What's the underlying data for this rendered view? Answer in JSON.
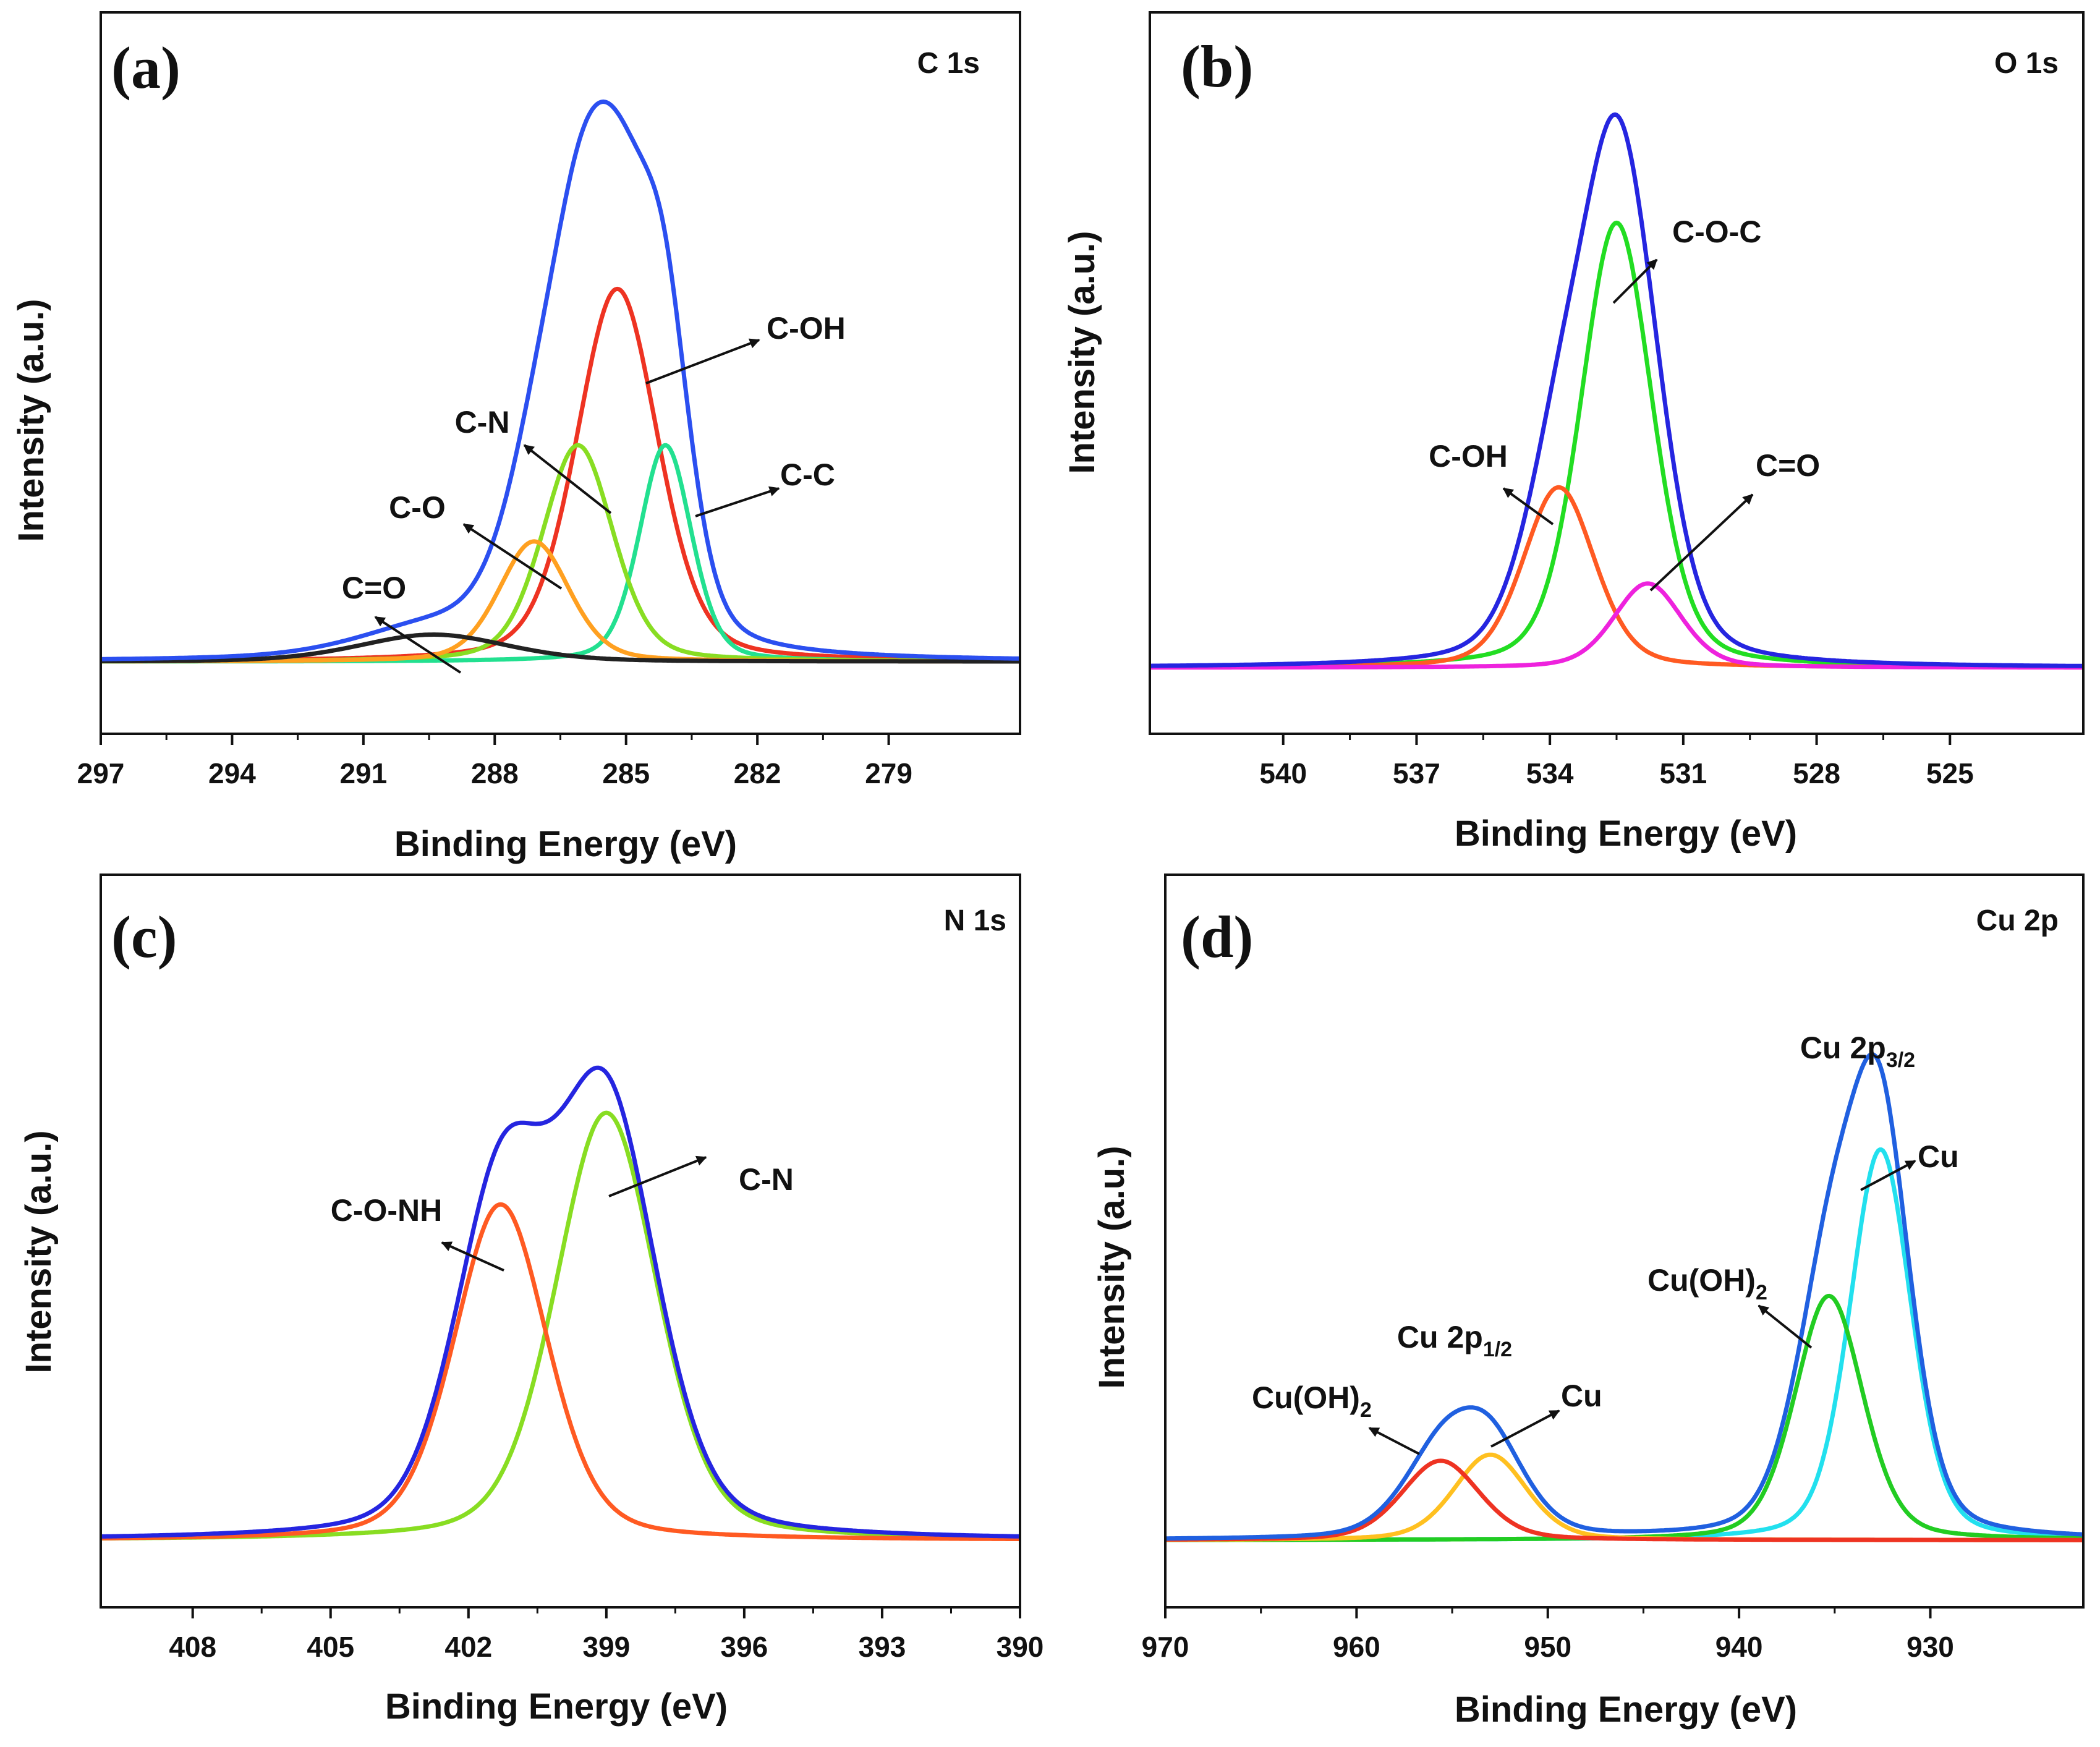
{
  "figure": {
    "panels": [
      {
        "letter": "(a)",
        "core": "C 1s",
        "xlabel": "Binding Energy (eV)",
        "ylabel": "Intensity (a.u.)"
      },
      {
        "letter": "(b)",
        "core": "O 1s",
        "xlabel": "Binding Energy (eV)",
        "ylabel": "Intensity (a.u.)"
      },
      {
        "letter": "(c)",
        "core": "N 1s",
        "xlabel": "Binding Energy (eV)",
        "ylabel": "Intensity (a.u.)"
      },
      {
        "letter": "(d)",
        "core": "Cu 2p",
        "xlabel": "Binding Energy (eV)",
        "ylabel": "Intensity (a.u.)"
      }
    ]
  },
  "chart_data": [
    {
      "type": "line",
      "title": "C 1s",
      "panel_label": "(a)",
      "xlabel": "Binding Energy (eV)",
      "ylabel": "Intensity (a.u.)",
      "xlim": [
        297,
        276
      ],
      "ylim": [
        -0.1,
        1.1
      ],
      "xticks": [
        "297",
        "294",
        "291",
        "288",
        "285",
        "282",
        "279"
      ],
      "yticks_shown": false,
      "baseline": 0.02,
      "series": [
        {
          "name": "Envelope",
          "color": "#2b4ff0",
          "envelope": true
        },
        {
          "name": "C-OH",
          "center": 285.2,
          "height": 0.62,
          "fwhm": 2.2,
          "color": "#ee3322"
        },
        {
          "name": "C-C",
          "center": 284.1,
          "height": 0.36,
          "fwhm": 1.4,
          "color": "#22e090"
        },
        {
          "name": "C-N",
          "center": 286.1,
          "height": 0.36,
          "fwhm": 1.9,
          "color": "#88dd22"
        },
        {
          "name": "C-O",
          "center": 287.1,
          "height": 0.2,
          "fwhm": 1.9,
          "color": "#ffa020"
        },
        {
          "name": "C=O",
          "center": 289.4,
          "height": 0.045,
          "fwhm": 4.0,
          "color": "#222222"
        }
      ],
      "annotations": [
        "C-OH",
        "C-C",
        "C-N",
        "C-O",
        "C=O"
      ]
    },
    {
      "type": "line",
      "title": "O 1s",
      "panel_label": "(b)",
      "xlabel": "Binding Energy (eV)",
      "ylabel": "Intensity (a.u.)",
      "xlim": [
        543,
        522
      ],
      "ylim": [
        -0.1,
        1.1
      ],
      "xticks": [
        "540",
        "537",
        "534",
        "531",
        "528",
        "525"
      ],
      "yticks_shown": false,
      "baseline": 0.01,
      "series": [
        {
          "name": "Envelope",
          "color": "#2525e0",
          "envelope": true
        },
        {
          "name": "C-O-C",
          "center": 532.5,
          "height": 0.74,
          "fwhm": 1.9,
          "color": "#22dd22"
        },
        {
          "name": "C-OH",
          "center": 533.8,
          "height": 0.3,
          "fwhm": 1.9,
          "color": "#ff5a22"
        },
        {
          "name": "C=O",
          "center": 531.8,
          "height": 0.14,
          "fwhm": 1.8,
          "color": "#ee22dd"
        }
      ],
      "annotations": [
        "C-O-C",
        "C-OH",
        "C=O"
      ]
    },
    {
      "type": "line",
      "title": "N 1s",
      "panel_label": "(c)",
      "xlabel": "Binding Energy (eV)",
      "ylabel": "Intensity (a.u.)",
      "xlim": [
        410,
        390
      ],
      "ylim": [
        -0.1,
        1.1
      ],
      "xticks": [
        "408",
        "405",
        "402",
        "399",
        "396",
        "393",
        "390"
      ],
      "yticks_shown": false,
      "baseline": 0.01,
      "series": [
        {
          "name": "Envelope",
          "color": "#2525e0",
          "envelope": true
        },
        {
          "name": "C-N",
          "center": 399.0,
          "height": 0.7,
          "fwhm": 2.6,
          "color": "#88dd22"
        },
        {
          "name": "C-O-NH",
          "center": 401.3,
          "height": 0.55,
          "fwhm": 2.4,
          "color": "#ff5a22"
        }
      ],
      "annotations": [
        "C-N",
        "C-O-NH"
      ]
    },
    {
      "type": "line",
      "title": "Cu 2p",
      "panel_label": "(d)",
      "xlabel": "Binding Energy (eV)",
      "ylabel": "Intensity (a.u.)",
      "xlim": [
        970,
        922
      ],
      "ylim": [
        -0.1,
        1.1
      ],
      "xticks": [
        "970",
        "960",
        "950",
        "940",
        "930"
      ],
      "yticks_shown": false,
      "baseline": 0.01,
      "series": [
        {
          "name": "Envelope",
          "color": "#2060e0",
          "envelope": true
        },
        {
          "name": "Cu 2p3/2 Cu",
          "center": 932.6,
          "height": 0.64,
          "fwhm": 3.8,
          "color": "#22e0ee"
        },
        {
          "name": "Cu 2p3/2 Cu(OH)2",
          "center": 935.3,
          "height": 0.4,
          "fwhm": 4.2,
          "color": "#22cc22"
        },
        {
          "name": "Cu 2p1/2 Cu",
          "center": 953.0,
          "height": 0.14,
          "fwhm": 4.5,
          "color": "#ffc020"
        },
        {
          "name": "Cu 2p1/2 Cu(OH)2",
          "center": 955.6,
          "height": 0.13,
          "fwhm": 4.8,
          "color": "#ee3322"
        }
      ],
      "annotations": [
        "Cu 2p3/2",
        "Cu",
        "Cu(OH)2",
        "Cu 2p1/2",
        "Cu",
        "Cu(OH)2"
      ]
    }
  ]
}
